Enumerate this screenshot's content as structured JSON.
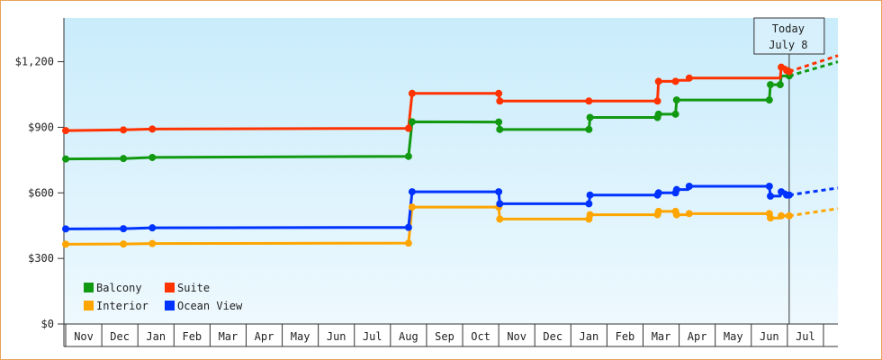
{
  "chart_data": {
    "type": "line",
    "title": "",
    "xlabel": "",
    "ylabel": "",
    "y_ticks": [
      "$0",
      "$300",
      "$600",
      "$900",
      "$1,200"
    ],
    "ylim": [
      0,
      1400
    ],
    "x_months": [
      "Nov",
      "Dec",
      "Jan",
      "Feb",
      "Mar",
      "Apr",
      "May",
      "Jun",
      "Jul",
      "Aug",
      "Sep",
      "Oct",
      "Nov",
      "Dec",
      "Jan",
      "Feb",
      "Mar",
      "Apr",
      "May",
      "Jun",
      "Jul"
    ],
    "x_domain": [
      -0.05,
      21.4
    ],
    "today": {
      "line1": "Today",
      "line2": "July 8",
      "x": 20.05
    },
    "legend_placement": "bottom-left",
    "series": [
      {
        "name": "Balcony",
        "color": "#119911",
        "points": [
          [
            0,
            755
          ],
          [
            1.6,
            757
          ],
          [
            2.4,
            762
          ],
          [
            9.5,
            767
          ],
          [
            9.6,
            925
          ],
          [
            12.0,
            924
          ],
          [
            12.03,
            890
          ],
          [
            14.5,
            890
          ],
          [
            14.53,
            945
          ],
          [
            16.4,
            945
          ],
          [
            16.43,
            960
          ],
          [
            16.9,
            960
          ],
          [
            16.93,
            1025
          ],
          [
            19.5,
            1025
          ],
          [
            19.53,
            1095
          ],
          [
            19.8,
            1095
          ],
          [
            19.83,
            1135
          ],
          [
            20.05,
            1135
          ]
        ],
        "forecast": [
          [
            20.05,
            1135
          ],
          [
            21.4,
            1200
          ]
        ]
      },
      {
        "name": "Suite",
        "color": "#ff3300",
        "points": [
          [
            0,
            885
          ],
          [
            1.6,
            888
          ],
          [
            2.4,
            892
          ],
          [
            9.5,
            895
          ],
          [
            9.6,
            1055
          ],
          [
            12.0,
            1055
          ],
          [
            12.03,
            1020
          ],
          [
            14.5,
            1020
          ],
          [
            16.4,
            1020
          ],
          [
            16.43,
            1110
          ],
          [
            16.9,
            1110
          ],
          [
            16.93,
            1115
          ],
          [
            17.25,
            1115
          ],
          [
            17.28,
            1125
          ],
          [
            19.8,
            1125
          ],
          [
            19.83,
            1175
          ],
          [
            19.95,
            1175
          ],
          [
            19.98,
            1160
          ],
          [
            20.05,
            1155
          ]
        ],
        "forecast": [
          [
            20.05,
            1155
          ],
          [
            21.4,
            1228
          ]
        ]
      },
      {
        "name": "Interior",
        "color": "#ffa500",
        "points": [
          [
            0,
            365
          ],
          [
            1.6,
            366
          ],
          [
            2.4,
            368
          ],
          [
            9.5,
            370
          ],
          [
            9.6,
            535
          ],
          [
            12.0,
            535
          ],
          [
            12.03,
            480
          ],
          [
            14.5,
            480
          ],
          [
            14.53,
            500
          ],
          [
            16.4,
            500
          ],
          [
            16.43,
            515
          ],
          [
            16.9,
            515
          ],
          [
            16.93,
            500
          ],
          [
            17.25,
            500
          ],
          [
            17.28,
            505
          ],
          [
            19.5,
            505
          ],
          [
            19.53,
            485
          ],
          [
            19.8,
            485
          ],
          [
            19.83,
            495
          ],
          [
            20.05,
            495
          ]
        ],
        "forecast": [
          [
            20.05,
            495
          ],
          [
            21.4,
            528
          ]
        ]
      },
      {
        "name": "Ocean View",
        "color": "#0033ff",
        "points": [
          [
            0,
            435
          ],
          [
            1.6,
            436
          ],
          [
            2.4,
            440
          ],
          [
            9.5,
            442
          ],
          [
            9.6,
            605
          ],
          [
            12.0,
            605
          ],
          [
            12.03,
            550
          ],
          [
            14.5,
            550
          ],
          [
            14.53,
            590
          ],
          [
            16.4,
            590
          ],
          [
            16.43,
            600
          ],
          [
            16.9,
            600
          ],
          [
            16.93,
            615
          ],
          [
            17.25,
            615
          ],
          [
            17.28,
            630
          ],
          [
            19.5,
            630
          ],
          [
            19.53,
            585
          ],
          [
            19.8,
            585
          ],
          [
            19.83,
            605
          ],
          [
            19.95,
            605
          ],
          [
            19.98,
            590
          ],
          [
            20.05,
            590
          ]
        ],
        "forecast": [
          [
            20.05,
            590
          ],
          [
            21.4,
            622
          ]
        ]
      }
    ],
    "markers": {
      "Balcony": [
        [
          0,
          755
        ],
        [
          1.6,
          757
        ],
        [
          2.4,
          762
        ],
        [
          9.5,
          767
        ],
        [
          9.6,
          925
        ],
        [
          12.0,
          924
        ],
        [
          12.03,
          890
        ],
        [
          14.5,
          890
        ],
        [
          14.53,
          945
        ],
        [
          16.4,
          945
        ],
        [
          16.43,
          960
        ],
        [
          16.9,
          960
        ],
        [
          16.93,
          1025
        ],
        [
          19.5,
          1025
        ],
        [
          19.53,
          1095
        ],
        [
          19.8,
          1095
        ],
        [
          20.05,
          1135
        ]
      ],
      "Suite": [
        [
          0,
          885
        ],
        [
          1.6,
          888
        ],
        [
          2.4,
          892
        ],
        [
          9.5,
          895
        ],
        [
          9.6,
          1055
        ],
        [
          12.0,
          1055
        ],
        [
          12.03,
          1020
        ],
        [
          14.5,
          1020
        ],
        [
          16.4,
          1020
        ],
        [
          16.43,
          1110
        ],
        [
          16.9,
          1110
        ],
        [
          17.28,
          1125
        ],
        [
          19.83,
          1175
        ],
        [
          19.98,
          1160
        ],
        [
          20.05,
          1155
        ]
      ],
      "Interior": [
        [
          0,
          365
        ],
        [
          1.6,
          366
        ],
        [
          2.4,
          368
        ],
        [
          9.5,
          370
        ],
        [
          9.6,
          535
        ],
        [
          12.0,
          535
        ],
        [
          12.03,
          480
        ],
        [
          14.5,
          480
        ],
        [
          14.53,
          500
        ],
        [
          16.4,
          500
        ],
        [
          16.43,
          515
        ],
        [
          16.9,
          515
        ],
        [
          16.93,
          500
        ],
        [
          17.28,
          505
        ],
        [
          19.5,
          505
        ],
        [
          19.53,
          485
        ],
        [
          19.83,
          495
        ],
        [
          20.05,
          495
        ]
      ],
      "Ocean View": [
        [
          0,
          435
        ],
        [
          1.6,
          436
        ],
        [
          2.4,
          440
        ],
        [
          9.5,
          442
        ],
        [
          9.6,
          605
        ],
        [
          12.0,
          605
        ],
        [
          12.03,
          550
        ],
        [
          14.5,
          550
        ],
        [
          14.53,
          590
        ],
        [
          16.4,
          590
        ],
        [
          16.43,
          600
        ],
        [
          16.9,
          600
        ],
        [
          16.93,
          615
        ],
        [
          17.28,
          630
        ],
        [
          19.5,
          630
        ],
        [
          19.53,
          585
        ],
        [
          19.83,
          605
        ],
        [
          19.98,
          590
        ],
        [
          20.05,
          590
        ]
      ]
    },
    "legend": [
      {
        "name": "Balcony",
        "color": "#119911"
      },
      {
        "name": "Suite",
        "color": "#ff3300"
      },
      {
        "name": "Interior",
        "color": "#ffa500"
      },
      {
        "name": "Ocean View",
        "color": "#0033ff"
      }
    ]
  }
}
